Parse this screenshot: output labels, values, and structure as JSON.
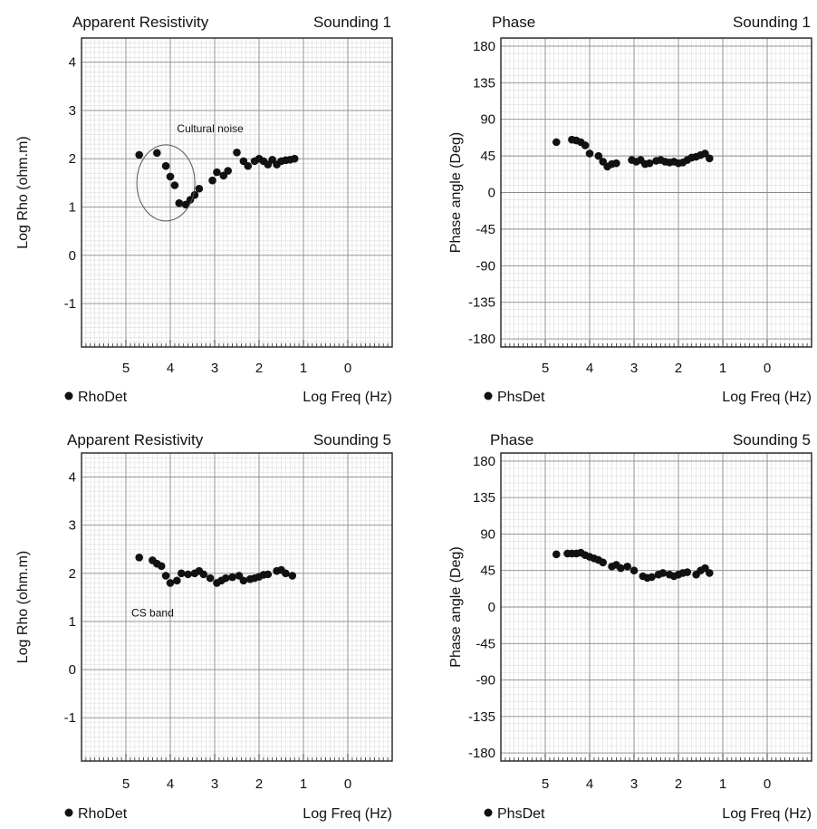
{
  "chart_data": [
    {
      "type": "scatter",
      "title": "Apparent Resistivity",
      "subtitle": "Sounding 1",
      "xlabel": "Log Freq (Hz)",
      "ylabel": "Log Rho (ohm.m)",
      "xlim": [
        6,
        -1
      ],
      "ylim": [
        -1.9,
        4.5
      ],
      "xticks": [
        "5",
        "4",
        "3",
        "2",
        "1",
        "0"
      ],
      "yticks": [
        "4",
        "3",
        "2",
        "1",
        "0",
        "-1"
      ],
      "grid": true,
      "legend_position": "bottom-left",
      "series": [
        {
          "name": "RhoDet",
          "x": [
            4.7,
            4.3,
            4.1,
            4.0,
            3.9,
            3.8,
            3.65,
            3.55,
            3.45,
            3.35,
            3.05,
            2.95,
            2.8,
            2.7,
            2.5,
            2.35,
            2.25,
            2.1,
            2.0,
            1.9,
            1.8,
            1.7,
            1.6,
            1.5,
            1.4,
            1.3,
            1.2
          ],
          "y": [
            2.08,
            2.12,
            1.85,
            1.63,
            1.45,
            1.08,
            1.05,
            1.15,
            1.25,
            1.38,
            1.55,
            1.72,
            1.65,
            1.75,
            2.13,
            1.95,
            1.85,
            1.95,
            2.0,
            1.95,
            1.88,
            1.98,
            1.88,
            1.95,
            1.97,
            1.98,
            2.0
          ]
        }
      ],
      "annotations": [
        {
          "text": "Cultural noise",
          "x": 3.1,
          "y": 2.55
        }
      ]
    },
    {
      "type": "scatter",
      "title": "Phase",
      "subtitle": "Sounding 1",
      "xlabel": "Log Freq (Hz)",
      "ylabel": "Phase angle (Deg)",
      "xlim": [
        6,
        -1
      ],
      "ylim": [
        -190,
        190
      ],
      "xticks": [
        "5",
        "4",
        "3",
        "2",
        "1",
        "0"
      ],
      "yticks": [
        "180",
        "135",
        "90",
        "45",
        "0",
        "-45",
        "-90",
        "-135",
        "-180"
      ],
      "grid": true,
      "legend_position": "bottom-left",
      "series": [
        {
          "name": "PhsDet",
          "x": [
            4.75,
            4.4,
            4.3,
            4.2,
            4.1,
            4.0,
            3.8,
            3.7,
            3.6,
            3.5,
            3.4,
            3.05,
            2.95,
            2.85,
            2.75,
            2.65,
            2.5,
            2.4,
            2.3,
            2.2,
            2.1,
            2.0,
            1.9,
            1.8,
            1.7,
            1.6,
            1.5,
            1.4,
            1.3
          ],
          "y": [
            62,
            65,
            64,
            62,
            58,
            48,
            45,
            38,
            32,
            35,
            36,
            40,
            38,
            40,
            35,
            36,
            39,
            40,
            38,
            37,
            38,
            36,
            37,
            40,
            43,
            44,
            46,
            48,
            42
          ]
        }
      ]
    },
    {
      "type": "scatter",
      "title": "Apparent Resistivity",
      "subtitle": "Sounding 5",
      "xlabel": "Log Freq (Hz)",
      "ylabel": "Log Rho (ohm.m)",
      "xlim": [
        6,
        -1
      ],
      "ylim": [
        -1.9,
        4.5
      ],
      "xticks": [
        "5",
        "4",
        "3",
        "2",
        "1",
        "0"
      ],
      "yticks": [
        "4",
        "3",
        "2",
        "1",
        "0",
        "-1"
      ],
      "grid": true,
      "legend_position": "bottom-left",
      "series": [
        {
          "name": "RhoDet",
          "x": [
            4.7,
            4.4,
            4.3,
            4.2,
            4.1,
            4.0,
            3.85,
            3.75,
            3.6,
            3.45,
            3.35,
            3.25,
            3.1,
            2.95,
            2.85,
            2.75,
            2.6,
            2.45,
            2.35,
            2.2,
            2.1,
            2.0,
            1.9,
            1.8,
            1.6,
            1.5,
            1.4,
            1.25
          ],
          "y": [
            2.33,
            2.27,
            2.2,
            2.15,
            1.95,
            1.8,
            1.85,
            2.0,
            1.98,
            2.0,
            2.05,
            1.98,
            1.9,
            1.8,
            1.85,
            1.9,
            1.92,
            1.95,
            1.85,
            1.88,
            1.9,
            1.93,
            1.97,
            1.98,
            2.05,
            2.07,
            2.0,
            1.95
          ]
        }
      ],
      "annotations": [
        {
          "text": "CS band",
          "x": 4.4,
          "y": 1.1
        }
      ]
    },
    {
      "type": "scatter",
      "title": "Phase",
      "subtitle": "Sounding 5",
      "xlabel": "Log Freq (Hz)",
      "ylabel": "Phase angle (Deg)",
      "xlim": [
        6,
        -1
      ],
      "ylim": [
        -190,
        190
      ],
      "xticks": [
        "5",
        "4",
        "3",
        "2",
        "1",
        "0"
      ],
      "yticks": [
        "180",
        "135",
        "90",
        "45",
        "0",
        "-45",
        "-90",
        "-135",
        "-180"
      ],
      "grid": true,
      "legend_position": "bottom-left",
      "series": [
        {
          "name": "PhsDet",
          "x": [
            4.75,
            4.5,
            4.4,
            4.3,
            4.2,
            4.1,
            4.0,
            3.9,
            3.8,
            3.7,
            3.5,
            3.4,
            3.3,
            3.15,
            3.0,
            2.8,
            2.7,
            2.6,
            2.45,
            2.35,
            2.2,
            2.1,
            2.0,
            1.9,
            1.8,
            1.6,
            1.5,
            1.4,
            1.3
          ],
          "y": [
            65,
            66,
            66,
            66,
            67,
            64,
            62,
            60,
            58,
            55,
            50,
            52,
            48,
            50,
            45,
            38,
            36,
            37,
            40,
            42,
            40,
            38,
            40,
            42,
            43,
            40,
            45,
            48,
            42
          ]
        }
      ]
    }
  ]
}
